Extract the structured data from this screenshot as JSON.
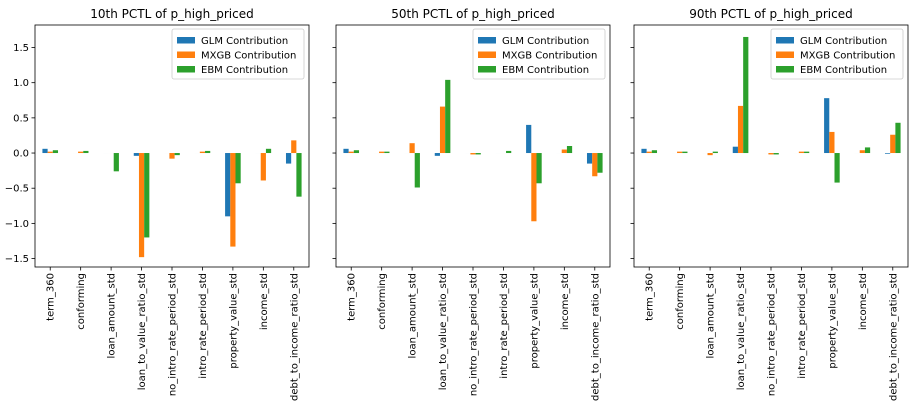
{
  "chart_data": [
    {
      "type": "bar",
      "title": "10th PCTL of p_high_priced",
      "ylim": [
        -1.62,
        1.82
      ],
      "yticks": [
        -1.5,
        -1.0,
        -0.5,
        0.0,
        0.5,
        1.0,
        1.5
      ],
      "ytick_labels": [
        "−1.5",
        "−1.0",
        "−0.5",
        "0.0",
        "0.5",
        "1.0",
        "1.5"
      ],
      "show_ytick_labels": true,
      "grid": false,
      "legend_position": "top-right",
      "categories": [
        "term_360",
        "conforming",
        "loan_amount_std",
        "loan_to_value_ratio_std",
        "no_intro_rate_period_std",
        "intro_rate_period_std",
        "property_value_std",
        "income_std",
        "debt_to_income_ratio_std"
      ],
      "series": [
        {
          "name": "GLM Contribution",
          "color": "#1f77b4",
          "values": [
            0.06,
            0.0,
            0.0,
            -0.04,
            0.0,
            0.0,
            -0.9,
            0.0,
            -0.15
          ]
        },
        {
          "name": "MXGB Contribution",
          "color": "#ff7f0e",
          "values": [
            0.02,
            0.02,
            0.0,
            -1.48,
            -0.08,
            0.02,
            -1.33,
            -0.39,
            0.18
          ]
        },
        {
          "name": "EBM Contribution",
          "color": "#2ca02c",
          "values": [
            0.04,
            0.03,
            -0.26,
            -1.2,
            -0.03,
            0.03,
            -0.43,
            0.06,
            -0.62
          ]
        }
      ]
    },
    {
      "type": "bar",
      "title": "50th PCTL of p_high_priced",
      "ylim": [
        -1.62,
        1.82
      ],
      "yticks": [
        -1.5,
        -1.0,
        -0.5,
        0.0,
        0.5,
        1.0,
        1.5
      ],
      "ytick_labels": [
        "−1.5",
        "−1.0",
        "−0.5",
        "0.0",
        "0.5",
        "1.0",
        "1.5"
      ],
      "show_ytick_labels": false,
      "grid": false,
      "legend_position": "top-right",
      "categories": [
        "term_360",
        "conforming",
        "loan_amount_std",
        "loan_to_value_ratio_std",
        "no_intro_rate_period_std",
        "intro_rate_period_std",
        "property_value_std",
        "income_std",
        "debt_to_income_ratio_std"
      ],
      "series": [
        {
          "name": "GLM Contribution",
          "color": "#1f77b4",
          "values": [
            0.06,
            0.0,
            0.0,
            -0.04,
            0.0,
            0.0,
            0.4,
            0.0,
            -0.15
          ]
        },
        {
          "name": "MXGB Contribution",
          "color": "#ff7f0e",
          "values": [
            0.02,
            0.02,
            0.14,
            0.66,
            -0.02,
            0.0,
            -0.97,
            0.05,
            -0.33
          ]
        },
        {
          "name": "EBM Contribution",
          "color": "#2ca02c",
          "values": [
            0.04,
            0.02,
            -0.49,
            1.04,
            -0.02,
            0.03,
            -0.43,
            0.1,
            -0.28
          ]
        }
      ]
    },
    {
      "type": "bar",
      "title": "90th PCTL of p_high_priced",
      "ylim": [
        -1.62,
        1.82
      ],
      "yticks": [
        -1.5,
        -1.0,
        -0.5,
        0.0,
        0.5,
        1.0,
        1.5
      ],
      "ytick_labels": [
        "−1.5",
        "−1.0",
        "−0.5",
        "0.0",
        "0.5",
        "1.0",
        "1.5"
      ],
      "show_ytick_labels": false,
      "grid": false,
      "legend_position": "top-right",
      "categories": [
        "term_360",
        "conforming",
        "loan_amount_std",
        "loan_to_value_ratio_std",
        "no_intro_rate_period_std",
        "intro_rate_period_std",
        "property_value_std",
        "income_std",
        "debt_to_income_ratio_std"
      ],
      "series": [
        {
          "name": "GLM Contribution",
          "color": "#1f77b4",
          "values": [
            0.06,
            0.0,
            0.0,
            0.09,
            0.0,
            0.0,
            0.78,
            0.0,
            -0.01
          ]
        },
        {
          "name": "MXGB Contribution",
          "color": "#ff7f0e",
          "values": [
            0.02,
            0.02,
            -0.03,
            0.67,
            -0.02,
            0.02,
            0.3,
            0.04,
            0.26
          ]
        },
        {
          "name": "EBM Contribution",
          "color": "#2ca02c",
          "values": [
            0.04,
            0.02,
            0.02,
            1.65,
            -0.02,
            0.02,
            -0.42,
            0.08,
            0.43
          ]
        }
      ]
    }
  ]
}
